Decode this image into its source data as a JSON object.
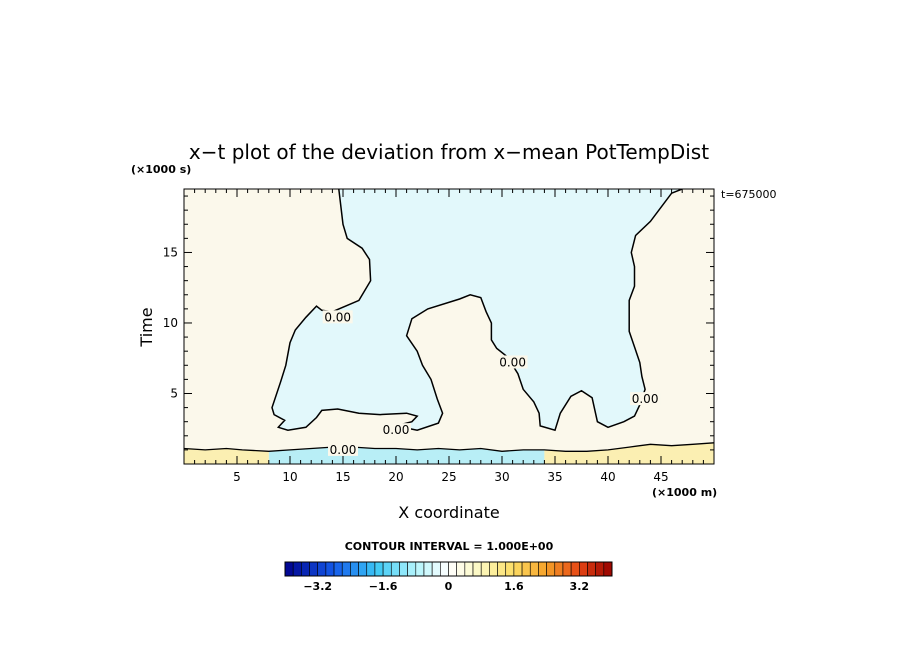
{
  "chart_data": {
    "type": "heatmap",
    "title": "x−t plot of the deviation from x−mean PotTempDist",
    "xlabel": "X coordinate",
    "ylabel": "Time",
    "x_unit": "(×1000 m)",
    "y_unit": "(×1000 s)",
    "time_annotation": "t=675000",
    "xlim": [
      0,
      50
    ],
    "ylim": [
      0,
      19.5
    ],
    "x_ticks": [
      5,
      10,
      15,
      20,
      25,
      30,
      35,
      40,
      45
    ],
    "y_ticks": [
      5,
      10,
      15
    ],
    "contour_labels": [
      {
        "text": "0.00",
        "x": 14.5,
        "y": 10.4
      },
      {
        "text": "0.00",
        "x": 20,
        "y": 2.4
      },
      {
        "text": "0.00",
        "x": 15,
        "y": 1.0
      },
      {
        "text": "0.00",
        "x": 31,
        "y": 7.2
      },
      {
        "text": "0.00",
        "x": 43.5,
        "y": 4.6
      }
    ],
    "zero_contour_upper": [
      [
        14.6,
        19.5
      ],
      [
        15.0,
        17.0
      ],
      [
        15.4,
        16.0
      ],
      [
        16.8,
        15.3
      ],
      [
        17.5,
        14.5
      ],
      [
        17.6,
        13.0
      ],
      [
        16.5,
        11.6
      ],
      [
        14.0,
        10.8
      ],
      [
        13.0,
        10.9
      ],
      [
        12.5,
        11.2
      ],
      [
        11.5,
        10.4
      ],
      [
        10.5,
        9.5
      ],
      [
        10.0,
        8.6
      ],
      [
        9.6,
        7.0
      ],
      [
        9.1,
        5.8
      ],
      [
        8.3,
        4.0
      ],
      [
        8.5,
        3.5
      ],
      [
        9.5,
        3.1
      ],
      [
        8.9,
        2.6
      ],
      [
        9.8,
        2.4
      ],
      [
        11.5,
        2.6
      ],
      [
        12.5,
        3.3
      ],
      [
        13.0,
        3.8
      ],
      [
        14.5,
        3.9
      ],
      [
        16.5,
        3.6
      ],
      [
        18.5,
        3.5
      ],
      [
        21.0,
        3.6
      ],
      [
        22.0,
        3.4
      ],
      [
        21.5,
        3.0
      ],
      [
        20.0,
        2.7
      ],
      [
        22.0,
        2.4
      ],
      [
        24.0,
        2.9
      ],
      [
        24.4,
        3.6
      ],
      [
        23.9,
        4.6
      ],
      [
        23.3,
        6.0
      ],
      [
        22.5,
        7.0
      ],
      [
        22.0,
        8.0
      ],
      [
        21.0,
        9.1
      ],
      [
        21.5,
        10.3
      ],
      [
        23.0,
        11.0
      ],
      [
        26.0,
        11.7
      ],
      [
        27.0,
        12.0
      ],
      [
        28.0,
        11.8
      ],
      [
        28.5,
        10.8
      ],
      [
        29.0,
        10.0
      ],
      [
        29.0,
        8.8
      ],
      [
        29.5,
        8.2
      ],
      [
        30.5,
        7.6
      ],
      [
        31.5,
        6.4
      ],
      [
        32.0,
        5.3
      ],
      [
        33.0,
        4.4
      ],
      [
        33.5,
        3.6
      ],
      [
        33.6,
        2.7
      ],
      [
        35.0,
        2.4
      ],
      [
        35.5,
        3.6
      ],
      [
        36.5,
        4.8
      ],
      [
        37.5,
        5.2
      ],
      [
        38.5,
        4.7
      ],
      [
        39.0,
        3.0
      ],
      [
        40.0,
        2.6
      ],
      [
        41.5,
        3.0
      ],
      [
        42.5,
        3.4
      ],
      [
        43.0,
        4.2
      ],
      [
        43.5,
        5.3
      ],
      [
        43.2,
        6.2
      ],
      [
        43.0,
        7.2
      ],
      [
        42.5,
        8.3
      ],
      [
        42.0,
        9.4
      ],
      [
        42.0,
        10.5
      ],
      [
        42.0,
        11.6
      ],
      [
        42.5,
        12.6
      ],
      [
        42.5,
        14.0
      ],
      [
        42.2,
        15.0
      ],
      [
        42.6,
        16.2
      ],
      [
        44.0,
        17.2
      ],
      [
        45.0,
        18.2
      ],
      [
        46.0,
        19.2
      ],
      [
        47.0,
        19.5
      ]
    ],
    "zero_contour_bottom": [
      [
        0,
        1.1
      ],
      [
        2,
        1.0
      ],
      [
        4,
        1.1
      ],
      [
        5.5,
        1.0
      ],
      [
        8,
        0.9
      ],
      [
        10,
        1.0
      ],
      [
        12,
        1.1
      ],
      [
        14,
        1.2
      ],
      [
        16,
        1.2
      ],
      [
        18,
        1.1
      ],
      [
        20,
        1.1
      ],
      [
        22,
        1.0
      ],
      [
        24,
        1.1
      ],
      [
        26,
        1.0
      ],
      [
        28,
        1.1
      ],
      [
        30,
        0.9
      ],
      [
        32,
        1.0
      ],
      [
        34,
        1.0
      ],
      [
        36,
        0.9
      ],
      [
        38,
        0.9
      ],
      [
        40,
        1.0
      ],
      [
        42,
        1.2
      ],
      [
        44,
        1.4
      ],
      [
        46,
        1.3
      ],
      [
        48,
        1.4
      ],
      [
        50,
        1.5
      ]
    ],
    "colorbar": {
      "caption": "CONTOUR INTERVAL = 1.000E+00",
      "min": -4.0,
      "max": 4.0,
      "bins": 40,
      "tick_values": [
        -3.2,
        -1.6,
        0,
        1.6,
        3.2
      ],
      "tick_labels": [
        "−3.2",
        "−1.6",
        "0",
        "1.6",
        "3.2"
      ]
    }
  }
}
